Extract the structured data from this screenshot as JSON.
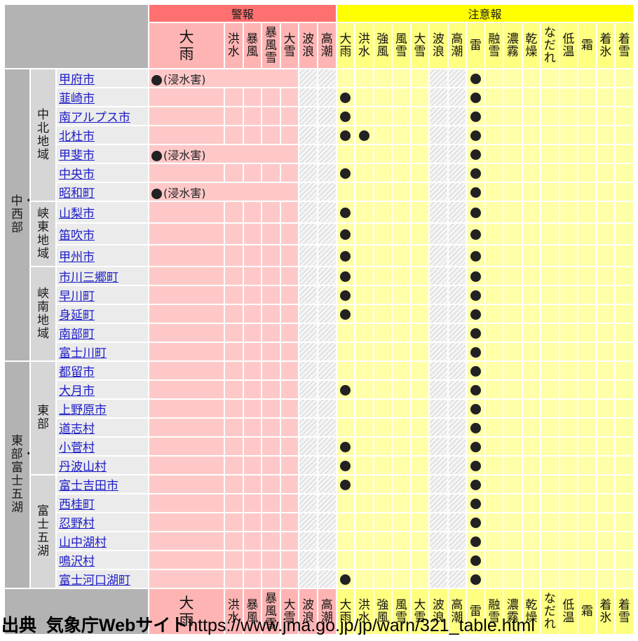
{
  "headers": {
    "warning": "警報",
    "caution": "注意報",
    "warning_cols": [
      "大雨",
      "洪水",
      "暴風",
      "暴風雪",
      "大雪",
      "波浪",
      "高潮"
    ],
    "caution_cols": [
      "大雨",
      "洪水",
      "強風",
      "風雪",
      "大雪",
      "波浪",
      "高潮",
      "雷",
      "融雪",
      "濃霧",
      "乾燥",
      "なだれ",
      "低温",
      "霜",
      "着氷",
      "着雪"
    ]
  },
  "warning_note": "(浸水害)",
  "regions": [
    {
      "name": "中・西部",
      "subregions": [
        {
          "name": "中北地域",
          "munis": [
            {
              "name": "甲府市",
              "w": [
                1
              ],
              "c": [
                7
              ]
            },
            {
              "name": "韮崎市",
              "w": [],
              "c": [
                0,
                7
              ]
            },
            {
              "name": "南アルプス市",
              "w": [],
              "c": [
                0,
                7
              ]
            },
            {
              "name": "北杜市",
              "w": [],
              "c": [
                0,
                1,
                7
              ]
            },
            {
              "name": "甲斐市",
              "w": [
                1
              ],
              "c": [
                7
              ]
            },
            {
              "name": "中央市",
              "w": [],
              "c": [
                0,
                7
              ]
            },
            {
              "name": "昭和町",
              "w": [
                1
              ],
              "c": [
                7
              ]
            }
          ]
        },
        {
          "name": "峡東地域",
          "munis": [
            {
              "name": "山梨市",
              "w": [],
              "c": [
                0,
                7
              ]
            },
            {
              "name": "笛吹市",
              "w": [],
              "c": [
                0,
                7
              ]
            },
            {
              "name": "甲州市",
              "w": [],
              "c": [
                0,
                7
              ]
            }
          ]
        },
        {
          "name": "峡南地域",
          "munis": [
            {
              "name": "市川三郷町",
              "w": [],
              "c": [
                0,
                7
              ]
            },
            {
              "name": "早川町",
              "w": [],
              "c": [
                0,
                7
              ]
            },
            {
              "name": "身延町",
              "w": [],
              "c": [
                0,
                7
              ]
            },
            {
              "name": "南部町",
              "w": [],
              "c": [
                7
              ]
            },
            {
              "name": "富士川町",
              "w": [],
              "c": [
                7
              ]
            }
          ]
        }
      ]
    },
    {
      "name": "東部・富士五湖",
      "subregions": [
        {
          "name": "東部",
          "munis": [
            {
              "name": "都留市",
              "w": [],
              "c": [
                7
              ]
            },
            {
              "name": "大月市",
              "w": [],
              "c": [
                0,
                7
              ]
            },
            {
              "name": "上野原市",
              "w": [],
              "c": [
                7
              ]
            },
            {
              "name": "道志村",
              "w": [],
              "c": [
                7
              ]
            },
            {
              "name": "小菅村",
              "w": [],
              "c": [
                0,
                7
              ]
            },
            {
              "name": "丹波山村",
              "w": [],
              "c": [
                0,
                7
              ]
            }
          ]
        },
        {
          "name": "富士五湖",
          "munis": [
            {
              "name": "富士吉田市",
              "w": [],
              "c": [
                0,
                7
              ]
            },
            {
              "name": "西桂町",
              "w": [],
              "c": [
                7
              ]
            },
            {
              "name": "忍野村",
              "w": [],
              "c": [
                7
              ]
            },
            {
              "name": "山中湖村",
              "w": [],
              "c": [
                7
              ]
            },
            {
              "name": "鳴沢村",
              "w": [],
              "c": [
                7
              ]
            },
            {
              "name": "富士河口湖町",
              "w": [],
              "c": [
                0,
                7
              ]
            }
          ]
        }
      ]
    }
  ],
  "source": {
    "label": "出典",
    "site": "気象庁Webサイト",
    "url": "https://www.jma.go.jp/jp/warn/321_table.html"
  },
  "colors": {
    "warning_header": "#ff7070",
    "caution_header": "#ffff00",
    "warning_body": "#ffc8c8",
    "caution_body": "#ffffa8",
    "link": "#1c1cc8"
  }
}
